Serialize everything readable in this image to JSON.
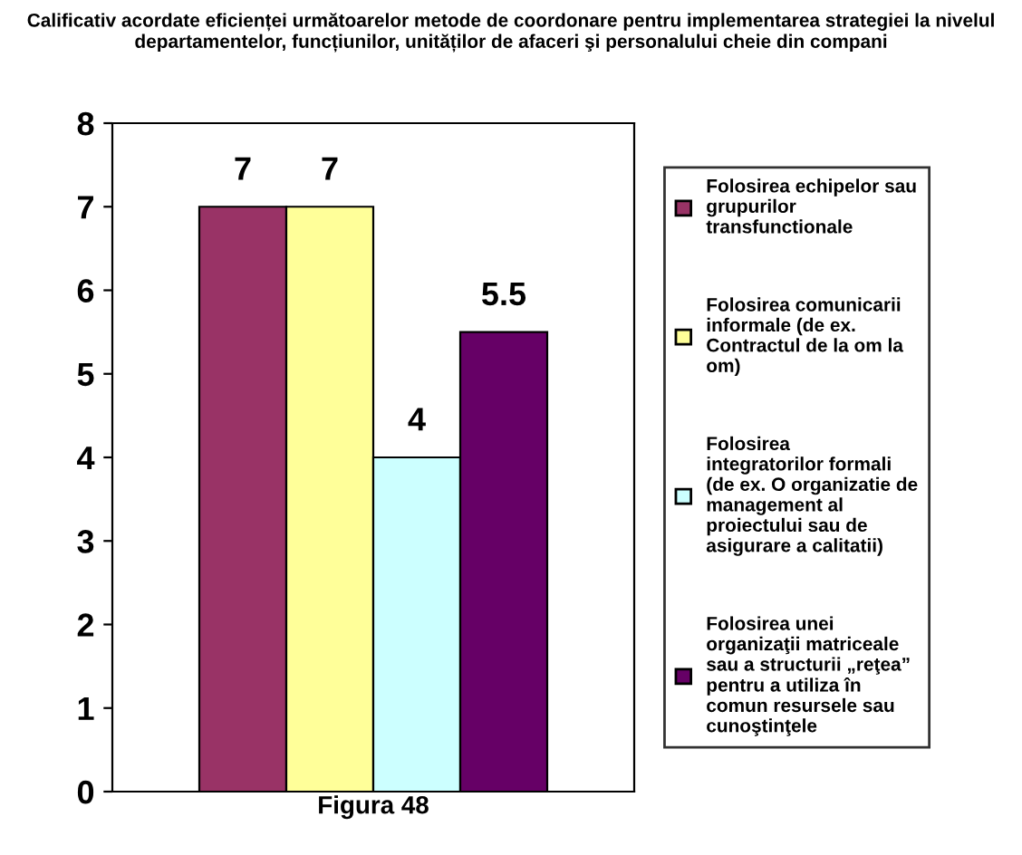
{
  "chart_data": {
    "type": "bar",
    "title": "Calificativ acordate eficienței următoarelor metode de coordonare pentru implementarea strategiei la nivelul departamentelor, funcțiunilor, unităților de afaceri şi personalului cheie din compani",
    "xlabel": "Figura 48",
    "categories": [
      null,
      null,
      null,
      null
    ],
    "stacked": true,
    "series": [
      {
        "name": "Folosirea echipelor sau grupurilor transfunctionale",
        "color": "#993366",
        "values": [
          7,
          null,
          null,
          null
        ]
      },
      {
        "name": "Folosirea comunicarii informale (de ex. Contractul de la om la om)",
        "color": "#ffff99",
        "values": [
          null,
          7,
          null,
          null
        ]
      },
      {
        "name": "Folosirea  integratorilor formali (de ex. O organizatie de management al proiectului sau de asigurare a calitatii)",
        "color": "#ccffff",
        "values": [
          null,
          null,
          4,
          null
        ]
      },
      {
        "name": "Folosirea unei organizaţii matriceale sau a structurii „reţea” pentru a utiliza în comun resursele sau cunoştinţele",
        "color": "#660066",
        "values": [
          null,
          null,
          null,
          5.5
        ]
      }
    ],
    "ylim": [
      0,
      8
    ],
    "yticks": [
      0,
      1,
      2,
      3,
      4,
      5,
      6,
      7,
      8
    ],
    "data_labels": true,
    "legend": "right",
    "grid": false
  }
}
